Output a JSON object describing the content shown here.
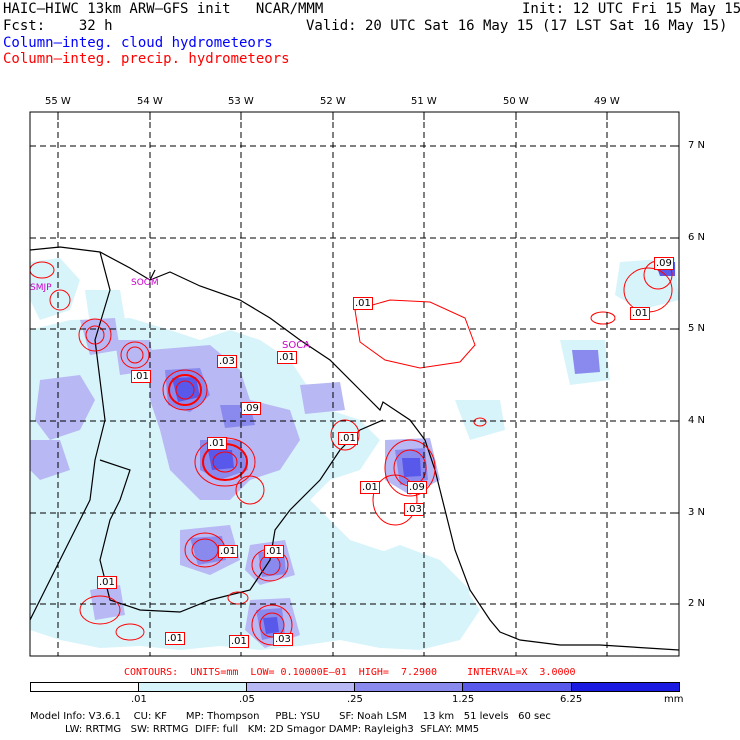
{
  "header": {
    "model_line": "HAIC–HIWC 13km ARW–GFS init   NCAR/MMM",
    "fcst_line": "Fcst:    32 h",
    "init_line": "Init: 12 UTC Fri 15 May 15",
    "valid_line": "Valid: 20 UTC Sat 16 May 15 (17 LST Sat 16 May 15)",
    "legend_cloud": "Column–integ. cloud hydrometeors",
    "legend_precip": "Column–integ. precip. hydrometeors",
    "cloud_color": "#0000ff",
    "precip_color": "#ff0000"
  },
  "map": {
    "lon_labels": [
      "55 W",
      "54 W",
      "53 W",
      "52 W",
      "51 W",
      "50 W",
      "49 W"
    ],
    "lat_labels": [
      "7 N",
      "6 N",
      "5 N",
      "4 N",
      "3 N",
      "2 N"
    ],
    "stations": [
      "SMJP",
      "SOOM",
      "SOCA"
    ],
    "contour_labels": [
      ".01",
      ".01",
      ".03",
      ".01",
      ".09",
      ".01",
      ".01",
      ".09",
      ".01",
      ".01",
      ".09",
      ".03",
      ".01",
      ".01",
      ".01",
      ".01",
      ".03",
      ".01"
    ]
  },
  "contours_info": "CONTOURS:  UNITS=mm  LOW= 0.10000E–01  HIGH=  7.2900     INTERVAL=X  3.0000",
  "colorbar": {
    "ticks": [
      ".01",
      ".05",
      ".25",
      "1.25",
      "6.25"
    ],
    "unit": "mm",
    "colors": [
      "#ffffff",
      "#d8f4fb",
      "#b8b8f4",
      "#8a8aee",
      "#5858ea",
      "#1a1ae0"
    ]
  },
  "model_info": {
    "line1": "Model Info: V3.6.1    CU: KF      MP: Thompson     PBL: YSU      SF: Noah LSM     13 km   51 levels   60 sec",
    "line2": "           LW: RRTMG   SW: RRTMG  DIFF: full   KM: 2D Smagor DAMP: Rayleigh3  SFLAY: MM5"
  }
}
